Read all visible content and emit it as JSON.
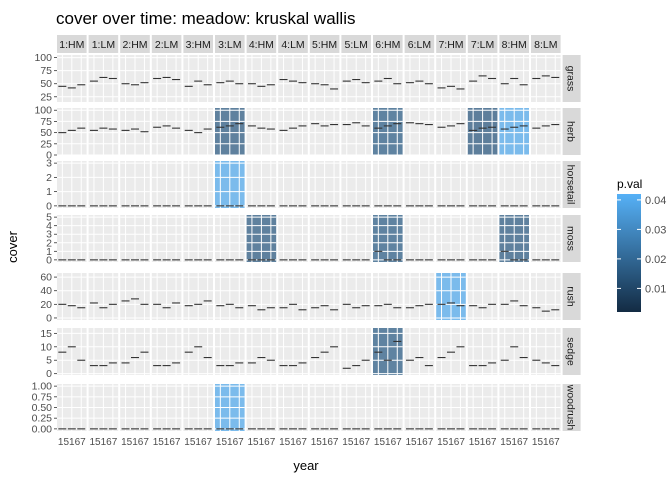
{
  "chart_data": {
    "type": "boxplot-facet-grid",
    "title": "cover over time: meadow: kruskal wallis",
    "xlabel": "year",
    "ylabel": "cover",
    "x_tick_label": "15167",
    "columns": [
      "1:HM",
      "1:LM",
      "2:HM",
      "2:LM",
      "3:HM",
      "3:LM",
      "4:HM",
      "4:LM",
      "5:HM",
      "5:LM",
      "6:HM",
      "6:LM",
      "7:HM",
      "7:LM",
      "8:HM",
      "8:LM"
    ],
    "legend": {
      "title": "p.val",
      "ticks": [
        0.01,
        0.02,
        0.03,
        0.04
      ],
      "tick_labels": [
        "0.01",
        "0.02",
        "0.03",
        "0.04"
      ],
      "range": [
        0.002,
        0.042
      ],
      "color_low": "#132B43",
      "color_high": "#56B1F7"
    },
    "rows": [
      {
        "name": "grass",
        "ylim": [
          15,
          105
        ],
        "ticks": [
          25,
          50,
          75,
          100
        ],
        "tick_labels": [
          "25",
          "50",
          "75",
          "100"
        ],
        "sig": [],
        "med": [
          [
            45,
            42,
            48
          ],
          [
            55,
            62,
            60
          ],
          [
            50,
            48,
            52
          ],
          [
            60,
            62,
            58
          ],
          [
            45,
            55,
            48
          ],
          [
            52,
            55,
            50
          ],
          [
            50,
            45,
            48
          ],
          [
            58,
            55,
            52
          ],
          [
            50,
            48,
            40
          ],
          [
            55,
            58,
            52
          ],
          [
            55,
            60,
            50
          ],
          [
            52,
            55,
            50
          ],
          [
            42,
            45,
            40
          ],
          [
            55,
            65,
            60
          ],
          [
            50,
            60,
            48
          ],
          [
            60,
            65,
            62
          ]
        ]
      },
      {
        "name": "herb",
        "ylim": [
          0,
          105
        ],
        "ticks": [
          0,
          25,
          50,
          75,
          100
        ],
        "tick_labels": [
          "0",
          "25",
          "50",
          "75",
          "100"
        ],
        "sig": [
          {
            "col": 5,
            "p": 0.015
          },
          {
            "col": 10,
            "p": 0.016
          },
          {
            "col": 13,
            "p": 0.014
          },
          {
            "col": 14,
            "p": 0.038
          }
        ],
        "med": [
          [
            50,
            55,
            60
          ],
          [
            55,
            60,
            58
          ],
          [
            55,
            58,
            52
          ],
          [
            62,
            65,
            60
          ],
          [
            55,
            50,
            58
          ],
          [
            62,
            65,
            70
          ],
          [
            65,
            60,
            58
          ],
          [
            55,
            60,
            65
          ],
          [
            70,
            65,
            68
          ],
          [
            68,
            72,
            65
          ],
          [
            60,
            65,
            70
          ],
          [
            72,
            70,
            68
          ],
          [
            62,
            65,
            70
          ],
          [
            55,
            60,
            62
          ],
          [
            58,
            62,
            65
          ],
          [
            60,
            65,
            68
          ]
        ]
      },
      {
        "name": "horsetail",
        "ylim": [
          -0.15,
          3.15
        ],
        "ticks": [
          0,
          1,
          2,
          3
        ],
        "tick_labels": [
          "0",
          "1",
          "2",
          "3"
        ],
        "sig": [
          {
            "col": 5,
            "p": 0.038
          }
        ],
        "med": [
          [
            0,
            0,
            0
          ],
          [
            0,
            0,
            0
          ],
          [
            0,
            0,
            0
          ],
          [
            0,
            0,
            0
          ],
          [
            0,
            0,
            0
          ],
          [
            0,
            0,
            0
          ],
          [
            0,
            0,
            0
          ],
          [
            0,
            0,
            0
          ],
          [
            0,
            0,
            0
          ],
          [
            0,
            0,
            0
          ],
          [
            0,
            0,
            0
          ],
          [
            0,
            0,
            0
          ],
          [
            0,
            0,
            0
          ],
          [
            0,
            0,
            0
          ],
          [
            0,
            0,
            0
          ],
          [
            0,
            0,
            0
          ]
        ]
      },
      {
        "name": "moss",
        "ylim": [
          -0.25,
          5.25
        ],
        "ticks": [
          0,
          1,
          2,
          3,
          4,
          5
        ],
        "tick_labels": [
          "0",
          "1",
          "2",
          "3",
          "4",
          "5"
        ],
        "sig": [
          {
            "col": 6,
            "p": 0.015
          },
          {
            "col": 10,
            "p": 0.016
          },
          {
            "col": 14,
            "p": 0.015
          }
        ],
        "med": [
          [
            0,
            0,
            0
          ],
          [
            0,
            0,
            0
          ],
          [
            0,
            0,
            0
          ],
          [
            0,
            0,
            0
          ],
          [
            0,
            0,
            0
          ],
          [
            0,
            0,
            0
          ],
          [
            0,
            0,
            0
          ],
          [
            0,
            0,
            0
          ],
          [
            0,
            0,
            0
          ],
          [
            0,
            0,
            0
          ],
          [
            1,
            0,
            0
          ],
          [
            0,
            0,
            0
          ],
          [
            0,
            0,
            0
          ],
          [
            0,
            0,
            0
          ],
          [
            1,
            0,
            0
          ],
          [
            0,
            0,
            0
          ]
        ]
      },
      {
        "name": "rush",
        "ylim": [
          -3,
          66
        ],
        "ticks": [
          0,
          20,
          40,
          60
        ],
        "tick_labels": [
          "0",
          "20",
          "40",
          "60"
        ],
        "sig": [
          {
            "col": 12,
            "p": 0.038
          }
        ],
        "med": [
          [
            20,
            18,
            15
          ],
          [
            22,
            15,
            20
          ],
          [
            25,
            28,
            20
          ],
          [
            20,
            15,
            22
          ],
          [
            18,
            20,
            25
          ],
          [
            18,
            20,
            15
          ],
          [
            18,
            12,
            15
          ],
          [
            15,
            20,
            12
          ],
          [
            15,
            18,
            12
          ],
          [
            20,
            15,
            18
          ],
          [
            18,
            20,
            15
          ],
          [
            15,
            18,
            20
          ],
          [
            20,
            22,
            18
          ],
          [
            18,
            15,
            20
          ],
          [
            20,
            25,
            18
          ],
          [
            15,
            10,
            12
          ]
        ]
      },
      {
        "name": "sedge",
        "ylim": [
          -0.5,
          17
        ],
        "ticks": [
          0,
          5,
          10,
          15
        ],
        "tick_labels": [
          "0",
          "5",
          "10",
          "15"
        ],
        "sig": [
          {
            "col": 10,
            "p": 0.016
          }
        ],
        "med": [
          [
            8,
            10,
            5
          ],
          [
            3,
            3,
            4
          ],
          [
            4,
            6,
            8
          ],
          [
            3,
            3,
            4
          ],
          [
            8,
            10,
            6
          ],
          [
            3,
            3,
            4
          ],
          [
            4,
            6,
            5
          ],
          [
            3,
            3,
            4
          ],
          [
            6,
            8,
            10
          ],
          [
            2,
            3,
            5
          ],
          [
            8,
            5,
            12
          ],
          [
            5,
            6,
            3
          ],
          [
            6,
            8,
            10
          ],
          [
            3,
            3,
            4
          ],
          [
            5,
            10,
            6
          ],
          [
            5,
            4,
            3
          ]
        ]
      },
      {
        "name": "woodrush",
        "ylim": [
          -0.05,
          1.05
        ],
        "ticks": [
          0,
          0.25,
          0.5,
          0.75,
          1
        ],
        "tick_labels": [
          "0.00",
          "0.25",
          "0.50",
          "0.75",
          "1.00"
        ],
        "sig": [
          {
            "col": 5,
            "p": 0.038
          }
        ],
        "med": [
          [
            0,
            0,
            0
          ],
          [
            0,
            0,
            0
          ],
          [
            0,
            0,
            0
          ],
          [
            0,
            0,
            0
          ],
          [
            0,
            0,
            0
          ],
          [
            0,
            0,
            0
          ],
          [
            0,
            0,
            0
          ],
          [
            0,
            0,
            0
          ],
          [
            0,
            0,
            0
          ],
          [
            0,
            0,
            0
          ],
          [
            0,
            0,
            0
          ],
          [
            0,
            0,
            0
          ],
          [
            0,
            0,
            0
          ],
          [
            0,
            0,
            0
          ],
          [
            0,
            0,
            0
          ],
          [
            0,
            0,
            0
          ]
        ]
      }
    ]
  }
}
